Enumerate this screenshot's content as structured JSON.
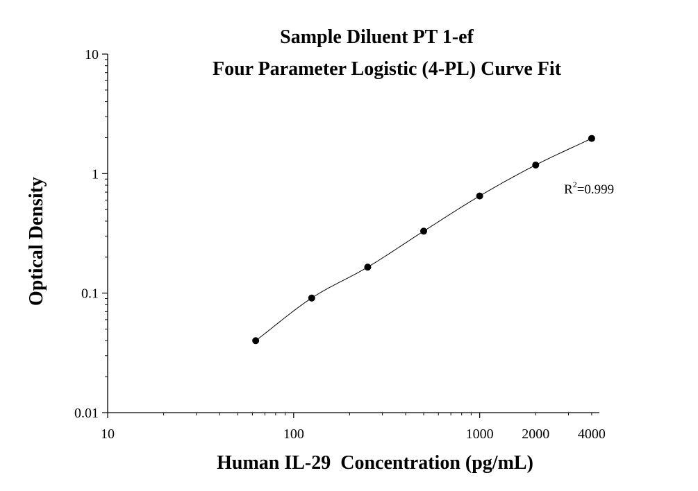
{
  "chart_data": {
    "type": "scatter",
    "title": "Sample Diluent PT 1-ef",
    "subtitle": "Four Parameter Logistic (4-PL) Curve Fit",
    "xlabel": "Human IL-29  Concentration (pg/mL)",
    "ylabel": "Optical Density",
    "xscale": "log",
    "yscale": "log",
    "xlim": [
      10,
      4400
    ],
    "ylim": [
      0.01,
      10
    ],
    "x_ticks": [
      "10",
      "100",
      "1000",
      "2000",
      "4000"
    ],
    "y_ticks": [
      "0.01",
      "0.1",
      "1",
      "10"
    ],
    "series": [
      {
        "x": [
          62.5,
          125,
          250,
          500,
          1000,
          2000,
          4000
        ],
        "y": [
          0.04,
          0.091,
          0.165,
          0.33,
          0.65,
          1.18,
          1.97
        ]
      }
    ],
    "fit": "4-PL",
    "annotation": {
      "text_base": "R",
      "superscript": "2",
      "text_rest": "=0.999"
    },
    "grid": false
  }
}
